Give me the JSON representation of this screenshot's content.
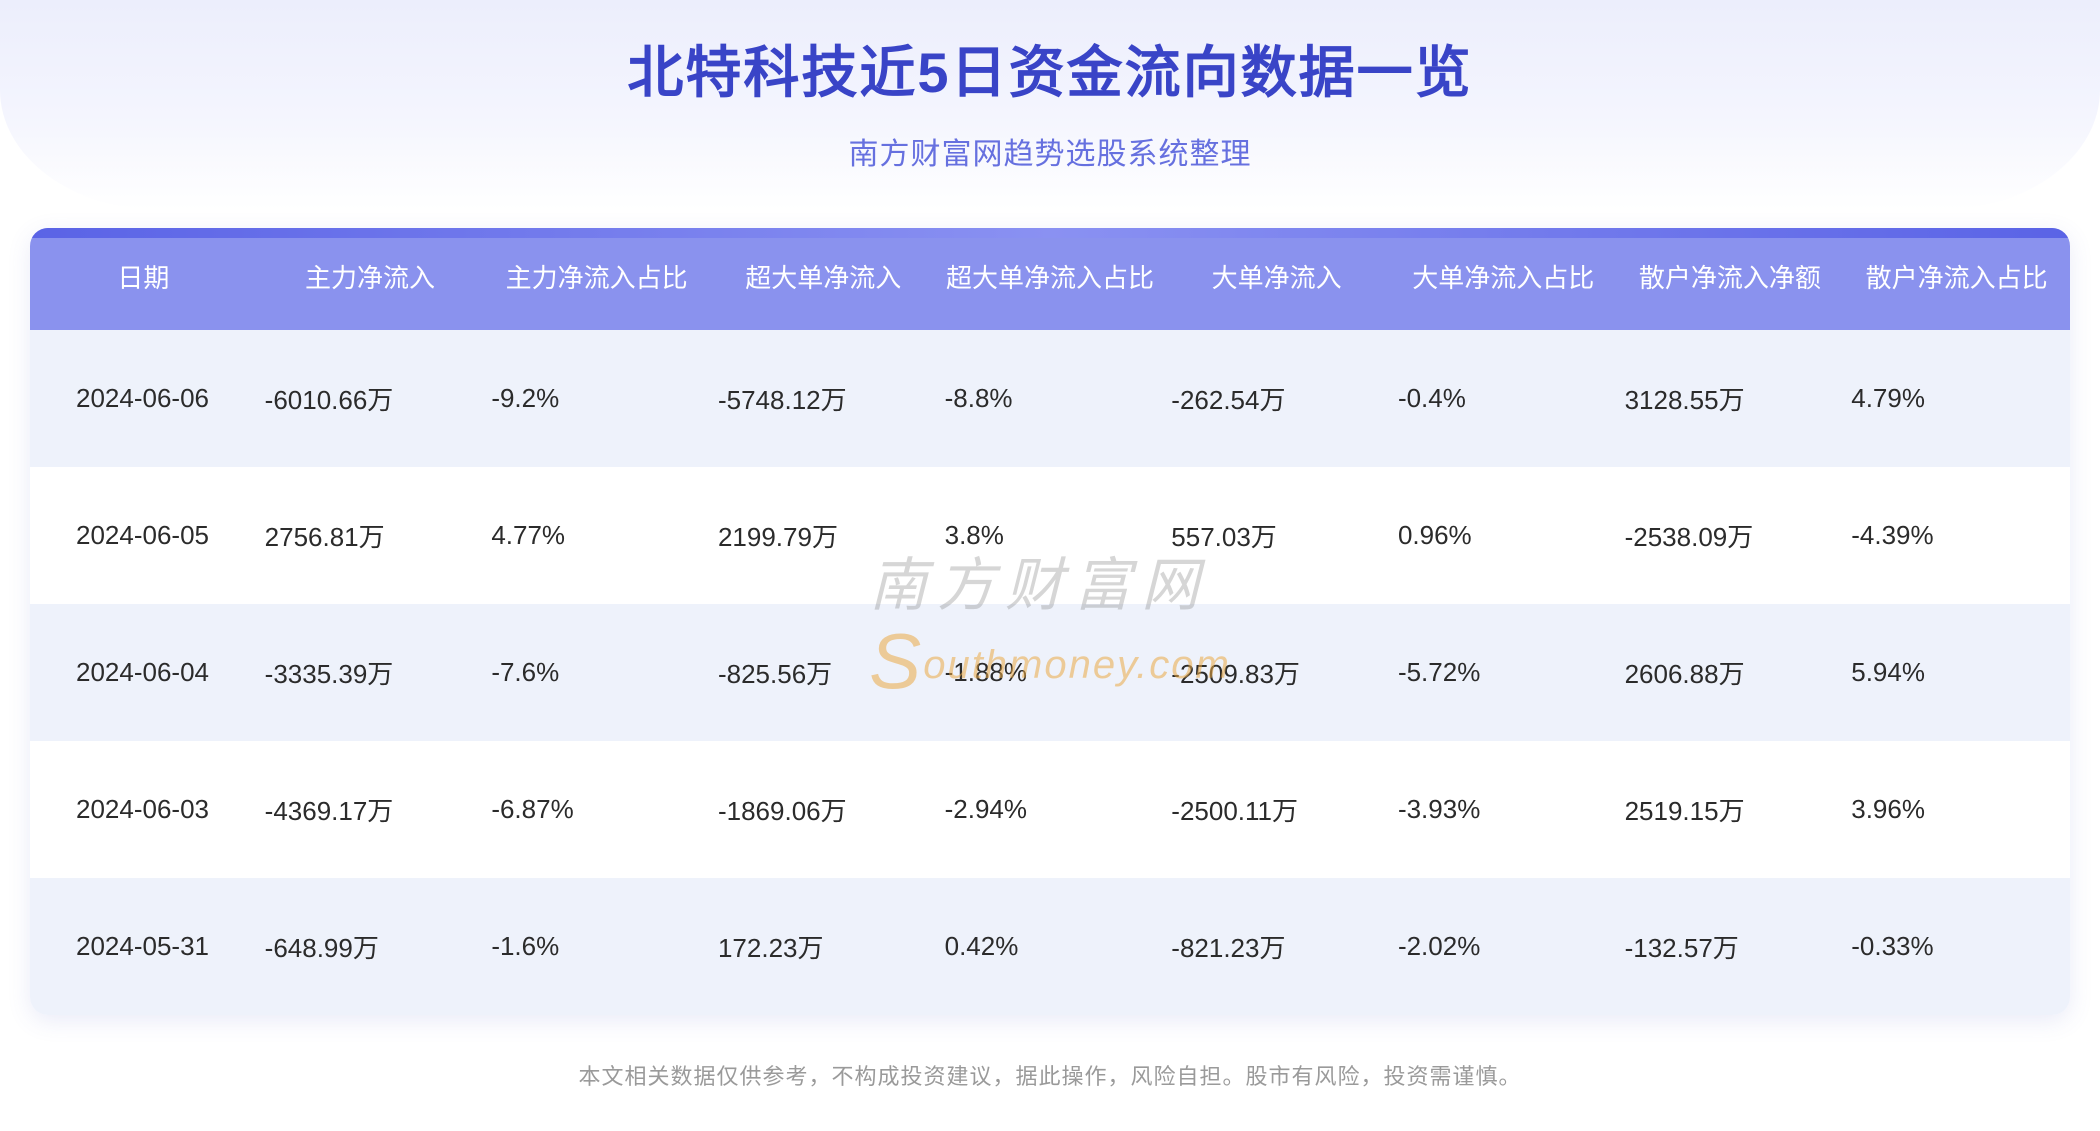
{
  "header": {
    "title": "北特科技近5日资金流向数据一览",
    "subtitle": "南方财富网趋势选股系统整理"
  },
  "watermark": {
    "line1": "南方财富网",
    "line2_prefix": "outhmoney",
    "line2_bigletter": "S",
    "line2_suffix": ".com"
  },
  "table": {
    "columns": [
      "日期",
      "主力净流入",
      "主力净流入占比",
      "超大单净流入",
      "超大单净流入占比",
      "大单净流入",
      "大单净流入占比",
      "散户净流入净额",
      "散户净流入占比"
    ],
    "rows": [
      [
        "2024-06-06",
        "-6010.66万",
        "-9.2%",
        "-5748.12万",
        "-8.8%",
        "-262.54万",
        "-0.4%",
        "3128.55万",
        "4.79%"
      ],
      [
        "2024-06-05",
        "2756.81万",
        "4.77%",
        "2199.79万",
        "3.8%",
        "557.03万",
        "0.96%",
        "-2538.09万",
        "-4.39%"
      ],
      [
        "2024-06-04",
        "-3335.39万",
        "-7.6%",
        "-825.56万",
        "-1.88%",
        "-2509.83万",
        "-5.72%",
        "2606.88万",
        "5.94%"
      ],
      [
        "2024-06-03",
        "-4369.17万",
        "-6.87%",
        "-1869.06万",
        "-2.94%",
        "-2500.11万",
        "-3.93%",
        "2519.15万",
        "3.96%"
      ],
      [
        "2024-05-31",
        "-648.99万",
        "-1.6%",
        "172.23万",
        "0.42%",
        "-821.23万",
        "-2.02%",
        "-132.57万",
        "-0.33%"
      ]
    ],
    "header_bg": "#8a92ee",
    "header_text_color": "#ffffff",
    "row_odd_bg": "#eef2fb",
    "row_even_bg": "#ffffff",
    "cell_text_color": "#2b2b2b",
    "header_fontsize": 26,
    "cell_fontsize": 26
  },
  "colors": {
    "title": "#3944c7",
    "subtitle": "#6670df",
    "hero_gradient_top": "#eceefc",
    "hero_gradient_bottom": "#ffffff",
    "card_accent": "#5a63e6",
    "disclaimer": "#9a9a9a",
    "watermark_gray": "rgba(120,120,120,0.30)",
    "watermark_gold": "rgba(235,170,70,0.55)"
  },
  "disclaimer": "本文相关数据仅供参考，不构成投资建议，据此操作，风险自担。股市有风险，投资需谨慎。"
}
